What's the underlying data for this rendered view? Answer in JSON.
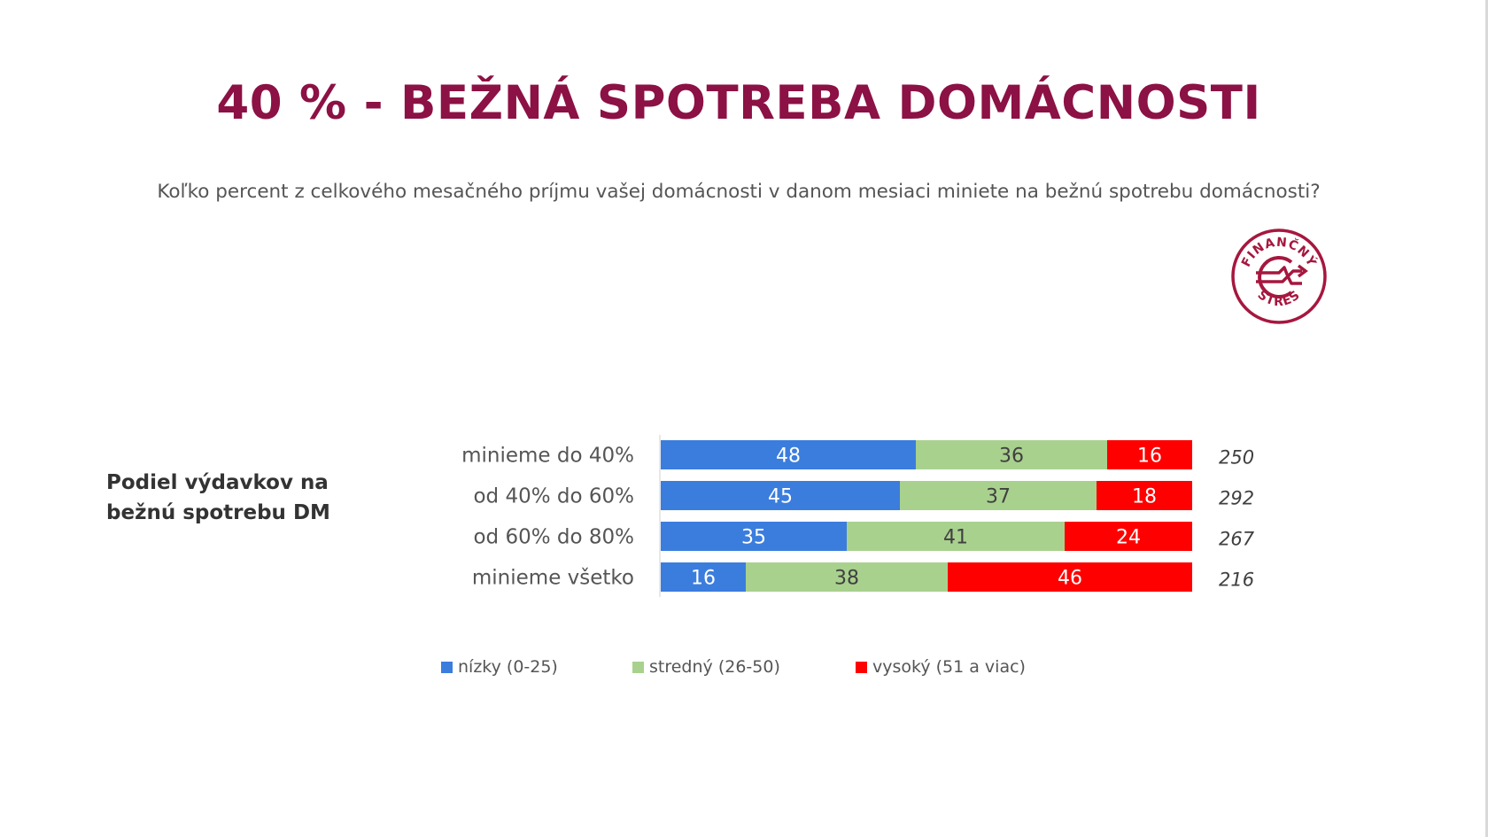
{
  "slide": {
    "title": "40 % - BEŽNÁ SPOTREBA DOMÁCNOSTI",
    "question": "Koľko percent z celkového mesačného príjmu vašej domácnosti v danom mesiaci miniete na bežnú spotrebu domácnosti?",
    "logo": {
      "icon": "financny-stres-logo",
      "text_top": "FINANČNÝ",
      "text_bottom": "STRES",
      "color": "#a6173e"
    }
  },
  "chart_data": {
    "type": "bar",
    "orientation": "horizontal",
    "stacked": true,
    "row_group_label": "Podiel výdavkov na bežnú spotrebu DM",
    "categories": [
      "minieme do 40%",
      "od 40% do 60%",
      "od 60% do 80%",
      "minieme všetko"
    ],
    "series": [
      {
        "name": "nízky (0-25)",
        "color": "#3b7ddd",
        "values": [
          48,
          45,
          35,
          16
        ]
      },
      {
        "name": "stredný (26-50)",
        "color": "#a9d18e",
        "values": [
          36,
          37,
          41,
          38
        ]
      },
      {
        "name": "vysoký (51 a viac)",
        "color": "#ff0000",
        "values": [
          16,
          18,
          24,
          46
        ]
      }
    ],
    "n": [
      250,
      292,
      267,
      216
    ],
    "xlim": [
      0,
      100
    ],
    "legend_position": "bottom",
    "grid": false
  }
}
